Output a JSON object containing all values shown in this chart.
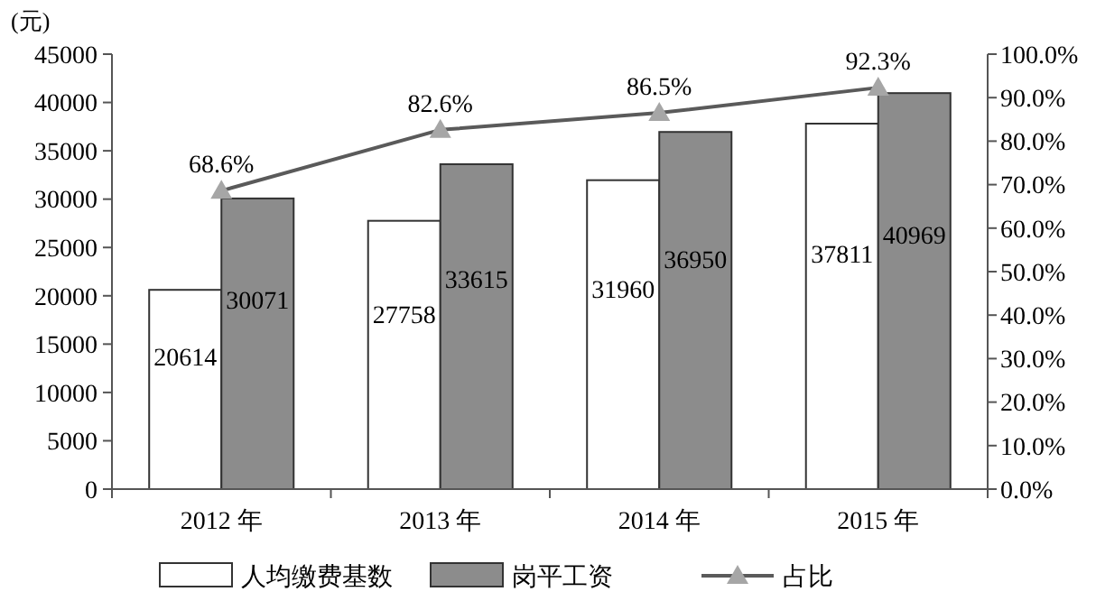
{
  "chart_data": {
    "type": "bar",
    "ylabel": "(元)",
    "categories": [
      "2012 年",
      "2013 年",
      "2014 年",
      "2015 年"
    ],
    "ylim": [
      0,
      45000
    ],
    "yticks": [
      0,
      5000,
      10000,
      15000,
      20000,
      25000,
      30000,
      35000,
      40000,
      45000
    ],
    "y2lim": [
      0,
      100
    ],
    "y2ticks": [
      {
        "value": 0,
        "label": "0.0%"
      },
      {
        "value": 10,
        "label": "10.0%"
      },
      {
        "value": 20,
        "label": "20.0%"
      },
      {
        "value": 30,
        "label": "30.0%"
      },
      {
        "value": 40,
        "label": "40.0%"
      },
      {
        "value": 50,
        "label": "50.0%"
      },
      {
        "value": 60,
        "label": "60.0%"
      },
      {
        "value": 70,
        "label": "70.0%"
      },
      {
        "value": 80,
        "label": "80.0%"
      },
      {
        "value": 90,
        "label": "90.0%"
      },
      {
        "value": 100,
        "label": "100.0%"
      }
    ],
    "series": [
      {
        "name": "人均缴费基数",
        "color": "#ffffff",
        "values": [
          20614,
          27758,
          31960,
          37811
        ],
        "value_labels": [
          "20614",
          "27758",
          "31960",
          "37811"
        ]
      },
      {
        "name": "岗平工资",
        "color": "#8c8c8c",
        "values": [
          30071,
          33615,
          36950,
          40969
        ],
        "value_labels": [
          "30071",
          "33615",
          "36950",
          "40969"
        ]
      },
      {
        "name": "占比",
        "type": "line",
        "axis": "y2",
        "color": "#5a5a5a",
        "marker": "triangle",
        "values": [
          68.6,
          82.6,
          86.5,
          92.3
        ],
        "value_labels": [
          "68.6%",
          "82.6%",
          "86.5%",
          "92.3%"
        ]
      }
    ],
    "grid": false,
    "legend": "bottom"
  }
}
